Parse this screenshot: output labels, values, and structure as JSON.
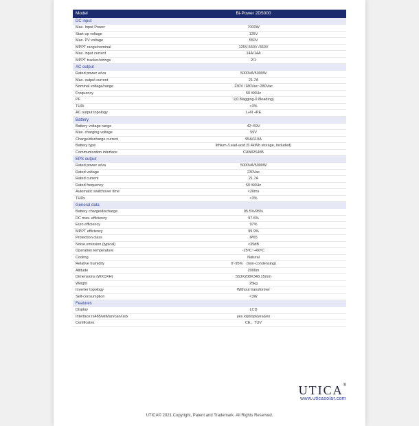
{
  "header": {
    "label": "Model",
    "value": "Bi-Power 2D5000"
  },
  "sections": [
    {
      "title": "DC input",
      "rows": [
        {
          "label": "Max. Input Power",
          "value": "7000W"
        },
        {
          "label": "Start-up voltage",
          "value": "125V"
        },
        {
          "label": "Max. PV voltage",
          "value": "550V"
        },
        {
          "label": "MPPT range/nominal",
          "value": "125V-550V /360V"
        },
        {
          "label": "Max. input current",
          "value": "14A/14A"
        },
        {
          "label": "MPPT tracker/strings",
          "value": "2/1"
        }
      ]
    },
    {
      "title": "AC output",
      "rows": [
        {
          "label": "Rated power w/va",
          "value": "5000VA/5000W"
        },
        {
          "label": "Max. output current",
          "value": "21.7A"
        },
        {
          "label": "Nominal voltage/range",
          "value": "230V /180Vac~280Vac"
        },
        {
          "label": "Frequency",
          "value": "50 /60Hz"
        },
        {
          "label": "PF",
          "value": "1(0.8lagging-0.8leading)"
        },
        {
          "label": "THDi",
          "value": "<3%"
        },
        {
          "label": "AC output topology",
          "value": "L+N +PE"
        }
      ]
    },
    {
      "title": "Battery",
      "rows": [
        {
          "label": "Battery voltage range",
          "value": "42~59V"
        },
        {
          "label": "Max. charging voltage",
          "value": "59V"
        },
        {
          "label": "Charge/discharge current",
          "value": "95A/110A"
        },
        {
          "label": "Battery type",
          "value": "lithium /Lead-acid (5.4kWh storage, included)"
        },
        {
          "label": "Communication interface",
          "value": "CAN/RS485"
        }
      ]
    },
    {
      "title": "EPS output",
      "rows": [
        {
          "label": "Rated power w/va",
          "value": "5000VA/5000W"
        },
        {
          "label": "Rated voltage",
          "value": "230Vac"
        },
        {
          "label": "Rated current",
          "value": "21.7A"
        },
        {
          "label": "Rated frequency",
          "value": "50 /60Hz"
        },
        {
          "label": "Automatic switchover time",
          "value": "<20ms"
        },
        {
          "label": "THDv",
          "value": "<3%"
        }
      ]
    },
    {
      "title": "General data",
      "rows": [
        {
          "label": "Battery charge/discharge",
          "value": "95.5%/95%"
        },
        {
          "label": "DC max. efficiency",
          "value": "97.6%"
        },
        {
          "label": "Euro efficiency",
          "value": "97%"
        },
        {
          "label": "MPPT efficiency",
          "value": "99.9%"
        },
        {
          "label": "Protection class",
          "value": "IP65"
        },
        {
          "label": "Noise emission (typical)",
          "value": "<35dB"
        },
        {
          "label": "Operation temperature",
          "value": "-25ºC~+60ºC"
        },
        {
          "label": "Cooling",
          "value": "Natural"
        },
        {
          "label": "Relative humidity",
          "value": "0~95%　(non-condensing)"
        },
        {
          "label": "Altitude",
          "value": "2000m"
        },
        {
          "label": "Dimensions (WXDXH)",
          "value": "553X208X348.15mm"
        },
        {
          "label": "Weight",
          "value": "25kg"
        },
        {
          "label": "Inverter topology",
          "value": "Without transformer"
        },
        {
          "label": "Self-consumption",
          "value": "<3W"
        }
      ]
    },
    {
      "title": "Features",
      "rows": [
        {
          "label": "Display",
          "value": "LCD"
        },
        {
          "label": "Interface:rs485/wifi/lan/can/usb",
          "value": "yes /opt/opt/yes/yes"
        },
        {
          "label": "Certificates",
          "value": "CE、TUV"
        }
      ]
    }
  ],
  "brand": {
    "name": "UTICA",
    "tm": "®",
    "url": "www.uticasolar.com"
  },
  "footer": "UTICA© 2021 Copyright, Patent and Trademark. All Rights Reserved.",
  "colors": {
    "header_bg": "#1a2a6c",
    "header_fg": "#ffffff",
    "section_bg": "#e6e9f5",
    "section_fg": "#2b3a8f",
    "row_border": "#e8e8e8",
    "text": "#333333",
    "page_bg": "#ffffff",
    "body_bg": "#f0f0f0"
  }
}
